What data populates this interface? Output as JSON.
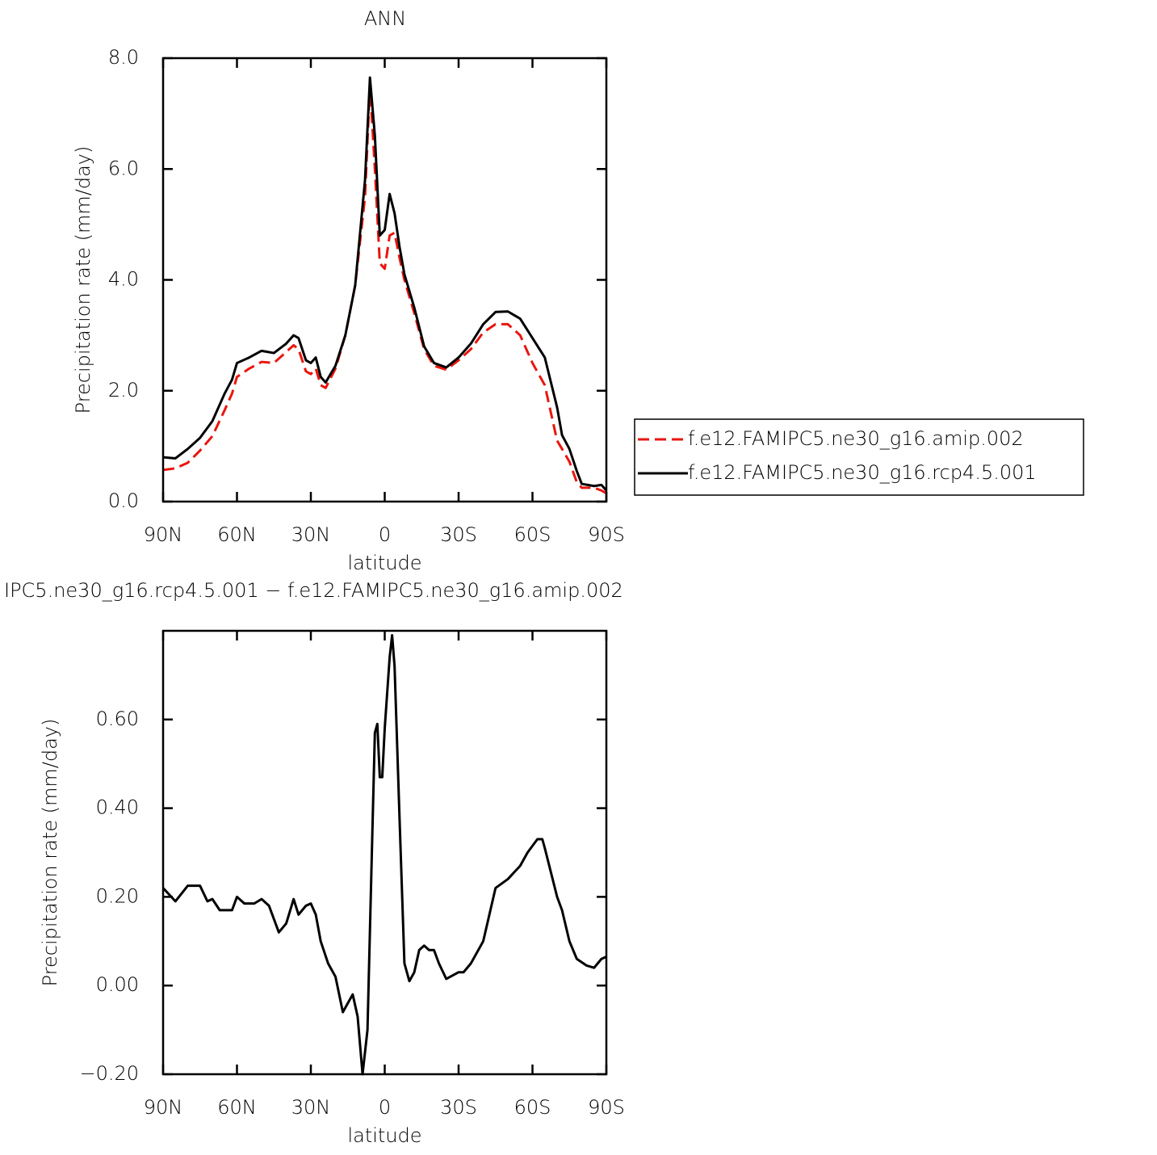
{
  "chart_data": [
    {
      "type": "line",
      "title": "ANN",
      "xlabel": "latitude",
      "ylabel": "Precipitation rate (mm/day)",
      "x": [
        90,
        85,
        80,
        75,
        70,
        65,
        62,
        60,
        55,
        50,
        45,
        40,
        37,
        35,
        32,
        30,
        28,
        26,
        24,
        20,
        16,
        12,
        8,
        6,
        4,
        2,
        0,
        -2,
        -4,
        -6,
        -8,
        -12,
        -16,
        -20,
        -25,
        -30,
        -35,
        -40,
        -45,
        -50,
        -55,
        -60,
        -65,
        -70,
        -72,
        -75,
        -78,
        -80,
        -85,
        -88,
        -90
      ],
      "series": [
        {
          "name": "f.e12.FAMIPC5.ne30_g16.amip.002",
          "color": "#e8160f",
          "line_style": "dashed",
          "values": [
            0.57,
            0.6,
            0.7,
            0.92,
            1.18,
            1.65,
            1.95,
            2.25,
            2.4,
            2.52,
            2.5,
            2.7,
            2.82,
            2.75,
            2.35,
            2.3,
            2.4,
            2.1,
            2.05,
            2.4,
            3.0,
            3.9,
            5.5,
            7.5,
            6.0,
            4.3,
            4.2,
            4.8,
            4.85,
            4.4,
            4.0,
            3.4,
            2.75,
            2.45,
            2.38,
            2.55,
            2.75,
            3.05,
            3.2,
            3.2,
            3.0,
            2.5,
            2.1,
            1.1,
            0.95,
            0.72,
            0.35,
            0.25,
            0.25,
            0.2,
            0.15
          ]
        },
        {
          "name": "f.e12.FAMIPC5.ne30_g16.rcp4.5.001",
          "color": "#000000",
          "line_style": "solid",
          "values": [
            0.8,
            0.78,
            0.95,
            1.15,
            1.45,
            1.95,
            2.2,
            2.5,
            2.6,
            2.72,
            2.68,
            2.85,
            3.0,
            2.95,
            2.55,
            2.5,
            2.6,
            2.25,
            2.15,
            2.45,
            3.0,
            3.9,
            5.8,
            7.65,
            6.6,
            4.8,
            4.9,
            5.55,
            5.2,
            4.6,
            4.1,
            3.5,
            2.8,
            2.5,
            2.42,
            2.6,
            2.85,
            3.2,
            3.42,
            3.43,
            3.3,
            2.95,
            2.6,
            1.7,
            1.2,
            0.95,
            0.55,
            0.32,
            0.28,
            0.3,
            0.2
          ]
        }
      ],
      "xlim": [
        90,
        -90
      ],
      "xticks": [
        {
          "value": 90,
          "label": "90N"
        },
        {
          "value": 60,
          "label": "60N"
        },
        {
          "value": 30,
          "label": "30N"
        },
        0,
        {
          "value": -30,
          "label": "30S"
        },
        {
          "value": -60,
          "label": "60S"
        },
        {
          "value": -90,
          "label": "90S"
        }
      ],
      "ylim": [
        0,
        8
      ],
      "yticks": [
        {
          "value": 0,
          "label": "0.0"
        },
        {
          "value": 2,
          "label": "2.0"
        },
        {
          "value": 4,
          "label": "4.0"
        },
        {
          "value": 6,
          "label": "6.0"
        },
        {
          "value": 8,
          "label": "8.0"
        }
      ],
      "legend": "right"
    },
    {
      "type": "line",
      "title": "IPC5.ne30_g16.rcp4.5.001 − f.e12.FAMIPC5.ne30_g16.amip.002",
      "xlabel": "latitude",
      "ylabel": "Precipitation rate (mm/day)",
      "x": [
        90,
        85,
        80,
        75,
        72,
        70,
        67,
        62,
        60,
        57,
        53,
        50,
        47,
        43,
        40,
        37,
        35,
        32,
        30,
        28,
        26,
        23,
        20,
        17,
        15,
        13,
        11,
        9,
        7,
        5,
        4,
        3,
        2,
        1,
        0,
        -2,
        -3,
        -4,
        -6,
        -8,
        -10,
        -12,
        -14,
        -16,
        -18,
        -20,
        -22,
        -25,
        -30,
        -32,
        -35,
        -40,
        -45,
        -50,
        -55,
        -58,
        -62,
        -64,
        -65,
        -70,
        -72,
        -75,
        -78,
        -82,
        -85,
        -88,
        -90
      ],
      "values": [
        0.22,
        0.19,
        0.225,
        0.225,
        0.19,
        0.195,
        0.17,
        0.17,
        0.2,
        0.185,
        0.185,
        0.195,
        0.18,
        0.12,
        0.14,
        0.195,
        0.16,
        0.18,
        0.185,
        0.16,
        0.1,
        0.05,
        0.02,
        -0.06,
        -0.04,
        -0.02,
        -0.07,
        -0.2,
        -0.1,
        0.35,
        0.57,
        0.59,
        0.47,
        0.47,
        0.58,
        0.74,
        0.79,
        0.72,
        0.38,
        0.05,
        0.01,
        0.03,
        0.08,
        0.09,
        0.08,
        0.08,
        0.05,
        0.015,
        0.03,
        0.03,
        0.05,
        0.1,
        0.22,
        0.24,
        0.27,
        0.3,
        0.33,
        0.33,
        0.31,
        0.2,
        0.17,
        0.1,
        0.06,
        0.045,
        0.04,
        0.06,
        0.065
      ],
      "color": "#000000",
      "xlim": [
        90,
        -90
      ],
      "xticks": [
        {
          "value": 90,
          "label": "90N"
        },
        {
          "value": 60,
          "label": "60N"
        },
        {
          "value": 30,
          "label": "30N"
        },
        0,
        {
          "value": -30,
          "label": "30S"
        },
        {
          "value": -60,
          "label": "60S"
        },
        {
          "value": -90,
          "label": "90S"
        }
      ],
      "ylim": [
        -0.2,
        0.8
      ],
      "yticks": [
        {
          "value": -0.2,
          "label": "−0.20"
        },
        {
          "value": 0,
          "label": "0.00"
        },
        {
          "value": 0.2,
          "label": "0.20"
        },
        {
          "value": 0.4,
          "label": "0.40"
        },
        {
          "value": 0.6,
          "label": "0.60"
        }
      ]
    }
  ]
}
